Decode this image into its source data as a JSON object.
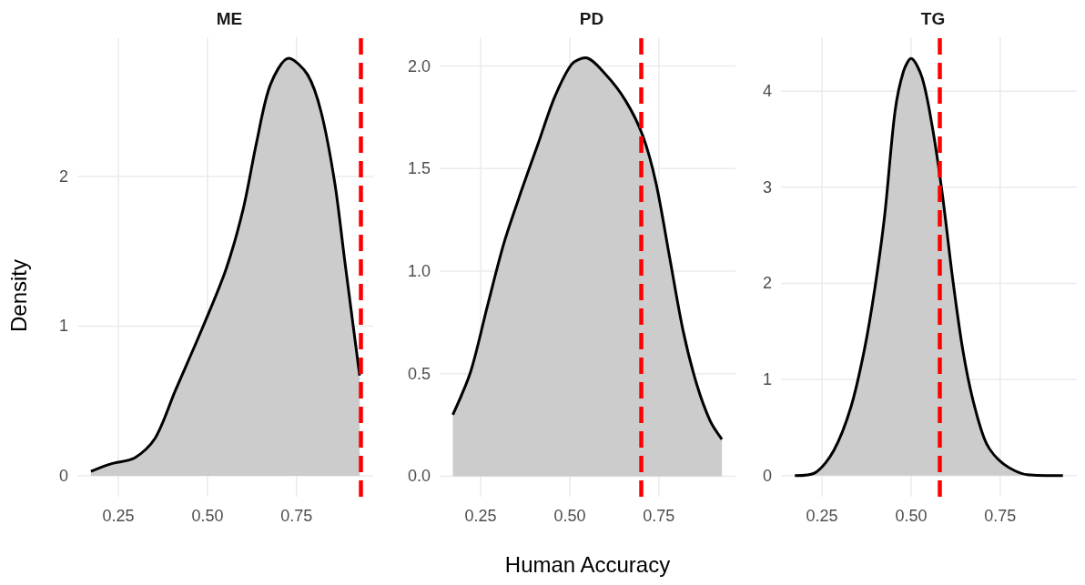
{
  "chart_data": [
    {
      "type": "area",
      "title": "ME",
      "ylabel": "Density",
      "grid": true,
      "series": [
        {
          "color": "#cccccc",
          "x": [
            0.173,
            0.229,
            0.296,
            0.353,
            0.41,
            0.488,
            0.552,
            0.6,
            0.638,
            0.676,
            0.728,
            0.781,
            0.819,
            0.857,
            0.885,
            0.927
          ],
          "values": [
            0.03,
            0.08,
            0.12,
            0.25,
            0.57,
            1.0,
            1.38,
            1.78,
            2.23,
            2.61,
            2.79,
            2.68,
            2.43,
            1.96,
            1.44,
            0.67
          ]
        }
      ],
      "xlim": [
        0.135,
        0.965
      ],
      "xticks": [
        {
          "value": 0.25,
          "label": "0.25"
        },
        {
          "value": 0.5,
          "label": "0.50"
        },
        {
          "value": 0.75,
          "label": "0.75"
        }
      ],
      "ylim": [
        -0.14,
        2.93
      ],
      "yticks": [
        0,
        1,
        2
      ],
      "ref_lines": [
        {
          "axis": "x",
          "value": 0.927,
          "color": "#ff0000",
          "line_style": "dashed"
        }
      ]
    },
    {
      "type": "area",
      "title": "PD",
      "xlabel": "Human Accuracy",
      "grid": true,
      "series": [
        {
          "color": "#cccccc",
          "x": [
            0.172,
            0.222,
            0.269,
            0.316,
            0.364,
            0.411,
            0.458,
            0.506,
            0.544,
            0.6,
            0.657,
            0.705,
            0.742,
            0.78,
            0.818,
            0.856,
            0.894,
            0.927
          ],
          "values": [
            0.3,
            0.51,
            0.83,
            1.14,
            1.39,
            1.62,
            1.85,
            2.01,
            2.04,
            1.96,
            1.83,
            1.66,
            1.43,
            1.07,
            0.71,
            0.45,
            0.27,
            0.18
          ]
        }
      ],
      "xlim": [
        0.135,
        0.965
      ],
      "xticks": [
        {
          "value": 0.25,
          "label": "0.25"
        },
        {
          "value": 0.5,
          "label": "0.50"
        },
        {
          "value": 0.75,
          "label": "0.75"
        }
      ],
      "ylim": [
        -0.1,
        2.14
      ],
      "yticks": [
        {
          "value": 0,
          "label": "0.0"
        },
        0.5,
        {
          "value": 1,
          "label": "1.0"
        },
        1.5,
        {
          "value": 2,
          "label": "2.0"
        }
      ],
      "ref_lines": [
        {
          "axis": "x",
          "value": 0.703,
          "color": "#ff0000",
          "line_style": "dashed"
        }
      ]
    },
    {
      "type": "area",
      "title": "TG",
      "grid": true,
      "series": [
        {
          "color": "#cccccc",
          "x": [
            0.174,
            0.231,
            0.283,
            0.331,
            0.369,
            0.398,
            0.426,
            0.455,
            0.479,
            0.5,
            0.531,
            0.56,
            0.588,
            0.617,
            0.645,
            0.674,
            0.712,
            0.76,
            0.826,
            0.926
          ],
          "values": [
            0,
            0.03,
            0.26,
            0.71,
            1.31,
            1.94,
            2.71,
            3.79,
            4.21,
            4.34,
            4.14,
            3.62,
            2.92,
            2.04,
            1.31,
            0.78,
            0.33,
            0.12,
            0.01,
            0
          ]
        }
      ],
      "xlim": [
        0.135,
        0.965
      ],
      "xticks": [
        {
          "value": 0.25,
          "label": "0.25"
        },
        {
          "value": 0.5,
          "label": "0.50"
        },
        {
          "value": 0.75,
          "label": "0.75"
        }
      ],
      "ylim": [
        -0.22,
        4.56
      ],
      "yticks": [
        0,
        1,
        2,
        3,
        4
      ],
      "ref_lines": [
        {
          "axis": "x",
          "value": 0.581,
          "color": "#ff0000",
          "line_style": "dashed"
        }
      ]
    }
  ]
}
